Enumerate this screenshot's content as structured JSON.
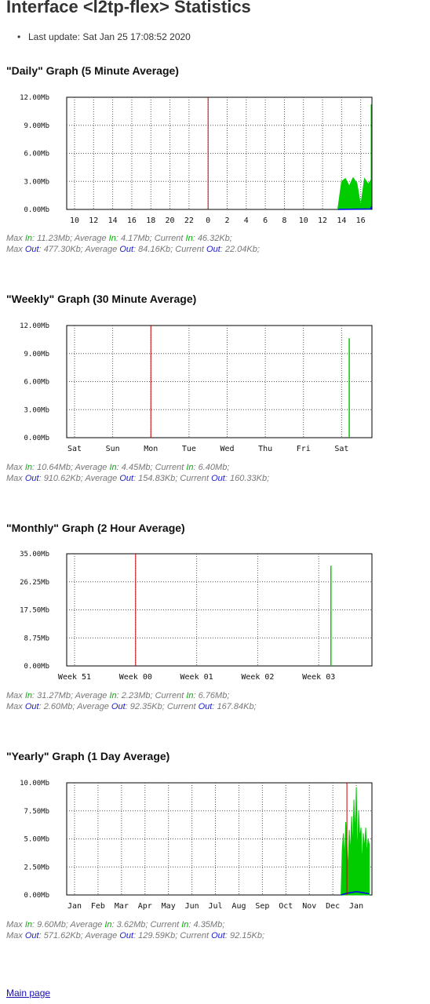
{
  "page": {
    "title": "Interface <l2tp-flex> Statistics",
    "last_update": "Last update: Sat Jan 25 17:08:52 2020",
    "main_page_link": "Main page",
    "colors": {
      "in": "#00cc00",
      "out": "#0000ff",
      "marker": "#cc0000",
      "grid": "#555555"
    }
  },
  "chart_data": [
    {
      "type": "area",
      "title": "\"Daily\" Graph (5 Minute Average)",
      "y_ticks": [
        "12.00Mb",
        "9.00Mb",
        "6.00Mb",
        "3.00Mb",
        "0.00Mb"
      ],
      "ylim": [
        0,
        12
      ],
      "x_ticks": [
        "10",
        "12",
        "14",
        "16",
        "18",
        "20",
        "22",
        "0",
        "2",
        "4",
        "6",
        "8",
        "10",
        "12",
        "14",
        "16"
      ],
      "vertical_marker_at_tick": 7,
      "series": [
        {
          "name": "In",
          "color": "#00cc00",
          "x": [
            13.8,
            14.0,
            14.2,
            14.4,
            14.6,
            14.8,
            15.0,
            15.2,
            15.4,
            15.6,
            15.8,
            16.0,
            16.2,
            16.4,
            16.6,
            17.0
          ],
          "values": [
            0,
            3.0,
            3.3,
            2.5,
            3.4,
            2.8,
            0.4,
            3.3,
            2.7,
            3.2,
            3.0,
            0.3,
            0.2,
            0.1,
            0.1,
            11.23
          ]
        },
        {
          "name": "Out",
          "color": "#0000ff",
          "x": [
            13.8,
            16.4,
            16.8,
            17.0
          ],
          "values": [
            0,
            0.05,
            0.2,
            0.3
          ]
        }
      ],
      "stats": {
        "in": [
          "Max ",
          "In",
          ": 11.23Mb; Average ",
          "In",
          ": 4.17Mb; Current ",
          "In",
          ": 46.32Kb;"
        ],
        "out": [
          "Max ",
          "Out",
          ": 477.30Kb; Average ",
          "Out",
          ": 84.16Kb; Current ",
          "Out",
          ": 22.04Kb;"
        ]
      }
    },
    {
      "type": "area",
      "title": "\"Weekly\" Graph (30 Minute Average)",
      "y_ticks": [
        "12.00Mb",
        "9.00Mb",
        "6.00Mb",
        "3.00Mb",
        "0.00Mb"
      ],
      "ylim": [
        0,
        12
      ],
      "x_ticks": [
        "Sat",
        "Sun",
        "Mon",
        "Tue",
        "Wed",
        "Thu",
        "Fri",
        "Sat"
      ],
      "vertical_marker_at_tick": 2,
      "series": [
        {
          "name": "In",
          "color": "#00cc00",
          "x": [
            7.2
          ],
          "values": [
            10.64
          ]
        }
      ],
      "stats": {
        "in": [
          "Max ",
          "In",
          ": 10.64Mb; Average ",
          "In",
          ": 4.45Mb; Current ",
          "In",
          ": 6.40Mb;"
        ],
        "out": [
          "Max ",
          "Out",
          ": 910.62Kb; Average ",
          "Out",
          ": 154.83Kb; Current ",
          "Out",
          ": 160.33Kb;"
        ]
      }
    },
    {
      "type": "area",
      "title": "\"Monthly\" Graph (2 Hour Average)",
      "y_ticks": [
        "35.00Mb",
        "26.25Mb",
        "17.50Mb",
        "8.75Mb",
        "0.00Mb"
      ],
      "ylim": [
        0,
        35
      ],
      "x_ticks": [
        "Week 51",
        "Week 00",
        "Week 01",
        "Week 02",
        "Week 03"
      ],
      "vertical_marker_at_tick": 1,
      "series": [
        {
          "name": "In",
          "color": "#00cc00",
          "x": [
            4.2
          ],
          "values": [
            31.27
          ]
        }
      ],
      "stats": {
        "in": [
          "Max ",
          "In",
          ": 31.27Mb; Average ",
          "In",
          ": 2.23Mb; Current ",
          "In",
          ": 6.76Mb;"
        ],
        "out": [
          "Max ",
          "Out",
          ": 2.60Mb; Average ",
          "Out",
          ": 92.35Kb; Current ",
          "Out",
          ": 167.84Kb;"
        ]
      }
    },
    {
      "type": "area",
      "title": "\"Yearly\" Graph (1 Day Average)",
      "y_ticks": [
        "10.00Mb",
        "7.50Mb",
        "5.00Mb",
        "2.50Mb",
        "0.00Mb"
      ],
      "ylim": [
        0,
        10
      ],
      "x_ticks": [
        "Jan",
        "Feb",
        "Mar",
        "Apr",
        "May",
        "Jun",
        "Jul",
        "Aug",
        "Sep",
        "Oct",
        "Nov",
        "Dec",
        "Jan"
      ],
      "vertical_marker_at_tick": 11.6,
      "series": [
        {
          "name": "In",
          "color": "#00cc00",
          "x": [
            11.35,
            11.4,
            11.45,
            11.5,
            11.55,
            11.6,
            11.65,
            11.7,
            11.75,
            11.8,
            11.85,
            11.9,
            11.95,
            12.0,
            12.05,
            12.1,
            12.15,
            12.2,
            12.25,
            12.3,
            12.35,
            12.4,
            12.45,
            12.5,
            12.55
          ],
          "values": [
            0,
            4.0,
            5.5,
            3.0,
            6.5,
            4.5,
            2.0,
            5.8,
            3.5,
            7.0,
            4.0,
            8.5,
            5.0,
            9.6,
            3.0,
            7.5,
            5.0,
            6.0,
            2.5,
            5.5,
            4.0,
            6.0,
            3.5,
            5.0,
            4.5
          ]
        },
        {
          "name": "Out",
          "color": "#0000ff",
          "x": [
            11.35,
            11.6,
            12.0,
            12.3,
            12.55
          ],
          "values": [
            0,
            0.15,
            0.3,
            0.2,
            0.1
          ]
        }
      ],
      "stats": {
        "in": [
          "Max ",
          "In",
          ": 9.60Mb; Average ",
          "In",
          ": 3.62Mb; Current ",
          "In",
          ": 4.35Mb;"
        ],
        "out": [
          "Max ",
          "Out",
          ": 571.62Kb; Average ",
          "Out",
          ": 129.59Kb; Current ",
          "Out",
          ": 92.15Kb;"
        ]
      }
    }
  ]
}
